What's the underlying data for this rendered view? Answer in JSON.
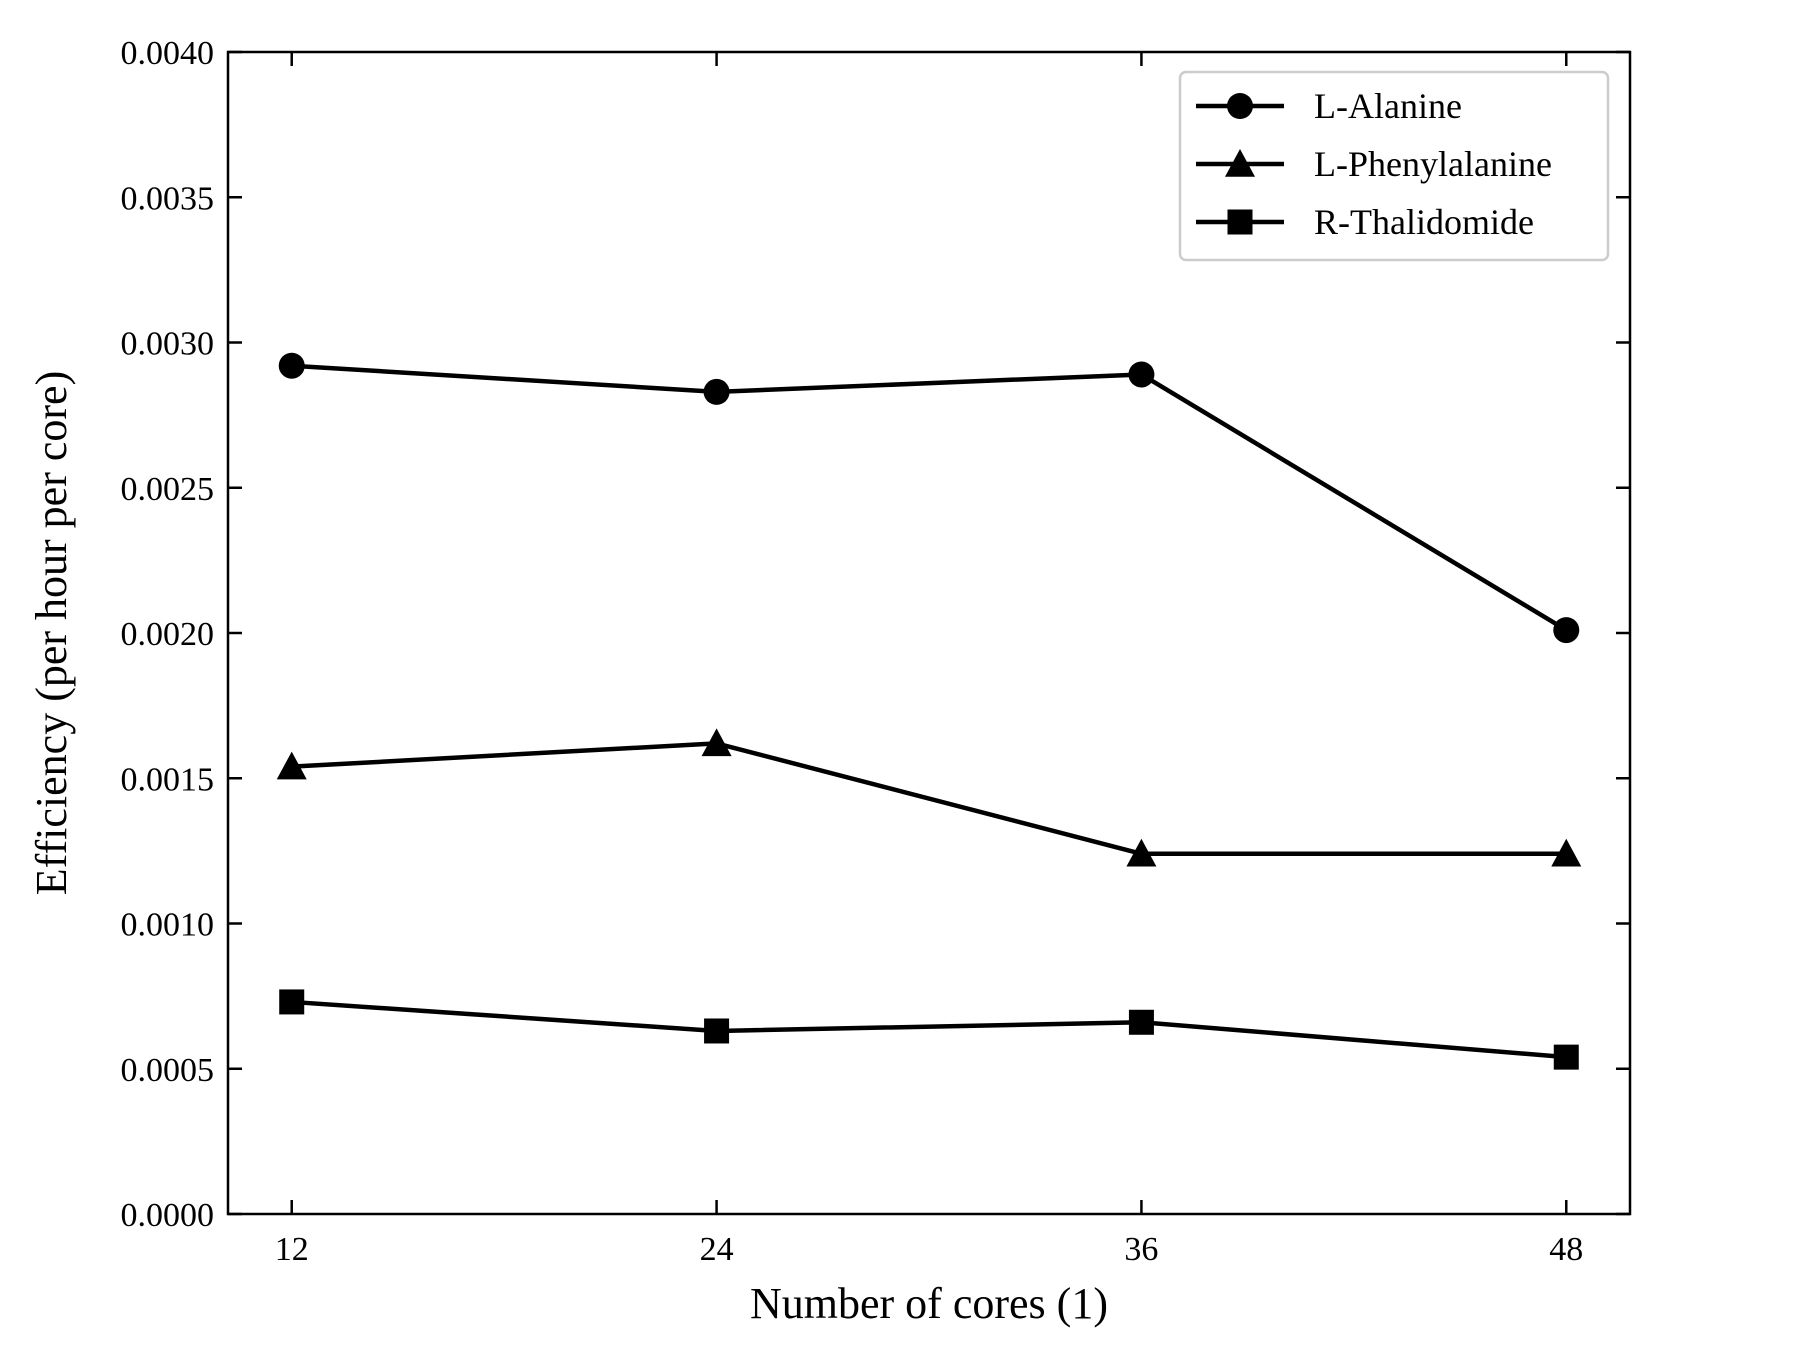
{
  "chart_data": {
    "type": "line",
    "title": "",
    "xlabel": "Number of cores (1)",
    "ylabel": "Efficiency (per hour per core)",
    "x": [
      12,
      24,
      36,
      48
    ],
    "x_tick_labels": [
      "12",
      "24",
      "36",
      "48"
    ],
    "xlim": [
      10.2,
      49.8
    ],
    "ylim": [
      0.0,
      0.004
    ],
    "y_ticks": [
      0.0,
      0.0005,
      0.001,
      0.0015,
      0.002,
      0.0025,
      0.003,
      0.0035,
      0.004
    ],
    "y_tick_labels": [
      "0.0000",
      "0.0005",
      "0.0010",
      "0.0015",
      "0.0020",
      "0.0025",
      "0.0030",
      "0.0035",
      "0.0040"
    ],
    "grid": false,
    "legend_position": "top-right",
    "line_color": "#000000",
    "series": [
      {
        "name": "L-Alanine",
        "marker": "circle",
        "values": [
          0.00292,
          0.00283,
          0.00289,
          0.00201
        ]
      },
      {
        "name": "L-Phenylalanine",
        "marker": "triangle",
        "values": [
          0.00154,
          0.00162,
          0.00124,
          0.00124
        ]
      },
      {
        "name": "R-Thalidomide",
        "marker": "square",
        "values": [
          0.00073,
          0.00063,
          0.00066,
          0.00054
        ]
      }
    ]
  }
}
